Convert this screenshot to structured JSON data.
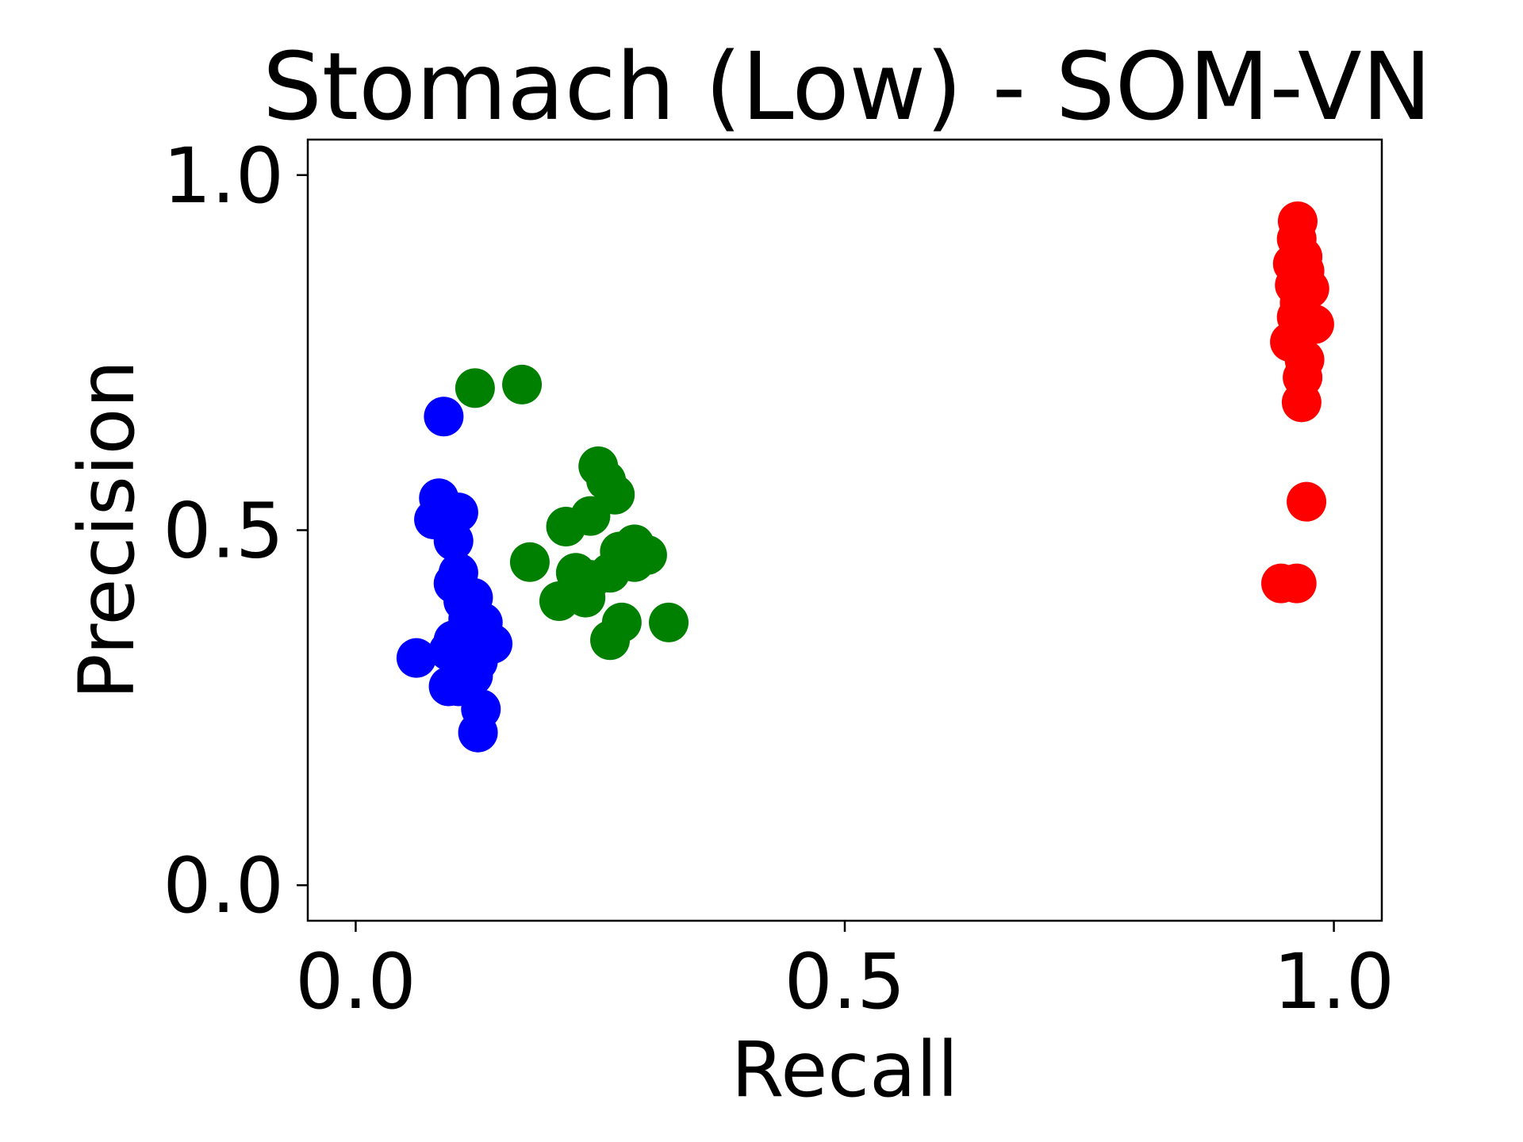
{
  "chart_data": {
    "type": "scatter",
    "title": "Stomach (Low) - SOM-VN",
    "xlabel": "Recall",
    "ylabel": "Precision",
    "xlim": [
      -0.049,
      1.049
    ],
    "ylim": [
      -0.05,
      1.05
    ],
    "xticks": [
      {
        "value": 0.0,
        "label": "0.0"
      },
      {
        "value": 0.5,
        "label": "0.5"
      },
      {
        "value": 1.0,
        "label": "1.0"
      }
    ],
    "yticks": [
      {
        "value": 0.0,
        "label": "0.0"
      },
      {
        "value": 0.5,
        "label": "0.5"
      },
      {
        "value": 1.0,
        "label": "1.0"
      }
    ],
    "grid": false,
    "series": [
      {
        "color": "#0000ff",
        "points": [
          [
            0.09,
            0.66
          ],
          [
            0.085,
            0.545
          ],
          [
            0.08,
            0.515
          ],
          [
            0.105,
            0.525
          ],
          [
            0.1,
            0.485
          ],
          [
            0.105,
            0.44
          ],
          [
            0.1,
            0.425
          ],
          [
            0.12,
            0.405
          ],
          [
            0.11,
            0.4
          ],
          [
            0.115,
            0.375
          ],
          [
            0.13,
            0.37
          ],
          [
            0.14,
            0.34
          ],
          [
            0.1,
            0.345
          ],
          [
            0.095,
            0.33
          ],
          [
            0.105,
            0.325
          ],
          [
            0.12,
            0.33
          ],
          [
            0.125,
            0.315
          ],
          [
            0.062,
            0.32
          ],
          [
            0.11,
            0.305
          ],
          [
            0.12,
            0.295
          ],
          [
            0.095,
            0.28
          ],
          [
            0.105,
            0.28
          ],
          [
            0.128,
            0.248
          ],
          [
            0.125,
            0.215
          ]
        ]
      },
      {
        "color": "#008000",
        "points": [
          [
            0.122,
            0.7
          ],
          [
            0.17,
            0.705
          ],
          [
            0.248,
            0.59
          ],
          [
            0.256,
            0.57
          ],
          [
            0.265,
            0.55
          ],
          [
            0.24,
            0.52
          ],
          [
            0.215,
            0.505
          ],
          [
            0.178,
            0.455
          ],
          [
            0.285,
            0.48
          ],
          [
            0.298,
            0.465
          ],
          [
            0.27,
            0.47
          ],
          [
            0.285,
            0.455
          ],
          [
            0.26,
            0.44
          ],
          [
            0.24,
            0.43
          ],
          [
            0.225,
            0.44
          ],
          [
            0.235,
            0.405
          ],
          [
            0.208,
            0.4
          ],
          [
            0.272,
            0.37
          ],
          [
            0.32,
            0.37
          ],
          [
            0.26,
            0.345
          ]
        ]
      },
      {
        "color": "#ff0000",
        "points": [
          [
            0.963,
            0.935
          ],
          [
            0.962,
            0.91
          ],
          [
            0.968,
            0.885
          ],
          [
            0.958,
            0.875
          ],
          [
            0.97,
            0.865
          ],
          [
            0.96,
            0.845
          ],
          [
            0.975,
            0.84
          ],
          [
            0.965,
            0.82
          ],
          [
            0.962,
            0.8
          ],
          [
            0.98,
            0.79
          ],
          [
            0.955,
            0.765
          ],
          [
            0.97,
            0.74
          ],
          [
            0.968,
            0.715
          ],
          [
            0.967,
            0.68
          ],
          [
            0.972,
            0.54
          ],
          [
            0.946,
            0.425
          ],
          [
            0.962,
            0.425
          ]
        ]
      }
    ]
  }
}
